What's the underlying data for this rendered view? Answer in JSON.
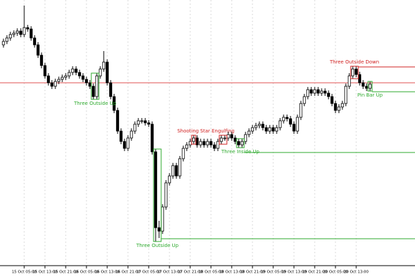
{
  "chart_data": {
    "type": "candlestick",
    "ylim": [
      15,
      400
    ],
    "xlim": [
      -1,
      119
    ],
    "bull_color": "#ffffff",
    "bear_color": "#000000",
    "wick_color": "#000000",
    "grid": true,
    "reference_line": {
      "value": 280,
      "color": "#e05050"
    },
    "xticks": [
      {
        "value": 6,
        "label": "15 Oct 05:00"
      },
      {
        "value": 12,
        "label": "15 Oct 13:00"
      },
      {
        "value": 18,
        "label": "15 Oct 21:00"
      },
      {
        "value": 24,
        "label": "16 Oct 05:00"
      },
      {
        "value": 30,
        "label": "16 Oct 13:00"
      },
      {
        "value": 36,
        "label": "16 Oct 21:00"
      },
      {
        "value": 42,
        "label": "17 Oct 05:00"
      },
      {
        "value": 48,
        "label": "17 Oct 13:00"
      },
      {
        "value": 54,
        "label": "17 Oct 21:00"
      },
      {
        "value": 60,
        "label": "18 Oct 05:00"
      },
      {
        "value": 66,
        "label": "18 Oct 13:00"
      },
      {
        "value": 72,
        "label": "18 Oct 21:00"
      },
      {
        "value": 78,
        "label": "19 Oct 05:00"
      },
      {
        "value": 84,
        "label": "19 Oct 13:00"
      },
      {
        "value": 90,
        "label": "19 Oct 21:00"
      },
      {
        "value": 96,
        "label": "20 Oct 05:00"
      },
      {
        "value": 102,
        "label": "20 Oct 13:00"
      }
    ],
    "ohlc": [
      [
        335,
        344,
        331,
        340
      ],
      [
        340,
        349,
        336,
        345
      ],
      [
        345,
        354,
        341,
        350
      ],
      [
        350,
        356,
        346,
        352
      ],
      [
        352,
        359,
        348,
        355
      ],
      [
        355,
        359,
        346,
        350
      ],
      [
        350,
        392,
        346,
        360
      ],
      [
        360,
        364,
        354,
        358
      ],
      [
        358,
        362,
        341,
        345
      ],
      [
        345,
        349,
        331,
        335
      ],
      [
        335,
        339,
        316,
        320
      ],
      [
        320,
        324,
        301,
        305
      ],
      [
        305,
        309,
        286,
        290
      ],
      [
        290,
        294,
        276,
        280
      ],
      [
        280,
        284,
        271,
        275
      ],
      [
        275,
        286,
        271,
        282
      ],
      [
        282,
        289,
        278,
        285
      ],
      [
        285,
        292,
        281,
        288
      ],
      [
        288,
        294,
        284,
        290
      ],
      [
        290,
        299,
        286,
        295
      ],
      [
        295,
        304,
        291,
        300
      ],
      [
        300,
        304,
        291,
        295
      ],
      [
        295,
        299,
        286,
        290
      ],
      [
        290,
        294,
        281,
        285
      ],
      [
        285,
        289,
        276,
        280
      ],
      [
        280,
        284,
        271,
        275
      ],
      [
        275,
        279,
        256,
        260
      ],
      [
        260,
        294,
        256,
        290
      ],
      [
        290,
        304,
        286,
        300
      ],
      [
        300,
        326,
        296,
        310
      ],
      [
        310,
        314,
        276,
        280
      ],
      [
        280,
        284,
        256,
        260
      ],
      [
        260,
        264,
        236,
        240
      ],
      [
        240,
        244,
        206,
        210
      ],
      [
        210,
        214,
        191,
        195
      ],
      [
        195,
        199,
        181,
        185
      ],
      [
        185,
        204,
        181,
        200
      ],
      [
        200,
        214,
        196,
        210
      ],
      [
        210,
        224,
        206,
        220
      ],
      [
        220,
        229,
        216,
        225
      ],
      [
        225,
        229,
        221,
        225
      ],
      [
        225,
        229,
        218,
        222
      ],
      [
        222,
        226,
        216,
        220
      ],
      [
        220,
        224,
        176,
        180
      ],
      [
        180,
        184,
        50,
        70
      ],
      [
        70,
        80,
        55,
        65
      ],
      [
        65,
        104,
        61,
        100
      ],
      [
        100,
        139,
        96,
        135
      ],
      [
        135,
        149,
        131,
        145
      ],
      [
        145,
        164,
        141,
        160
      ],
      [
        160,
        164,
        141,
        145
      ],
      [
        145,
        174,
        141,
        170
      ],
      [
        170,
        189,
        166,
        185
      ],
      [
        185,
        194,
        181,
        190
      ],
      [
        190,
        199,
        186,
        195
      ],
      [
        195,
        204,
        191,
        200
      ],
      [
        200,
        204,
        186,
        190
      ],
      [
        190,
        199,
        186,
        195
      ],
      [
        195,
        199,
        186,
        190
      ],
      [
        190,
        199,
        186,
        195
      ],
      [
        195,
        199,
        186,
        190
      ],
      [
        190,
        194,
        181,
        185
      ],
      [
        185,
        199,
        181,
        195
      ],
      [
        195,
        204,
        191,
        200
      ],
      [
        200,
        204,
        196,
        200
      ],
      [
        200,
        209,
        196,
        205
      ],
      [
        205,
        209,
        196,
        200
      ],
      [
        200,
        204,
        191,
        195
      ],
      [
        195,
        199,
        186,
        190
      ],
      [
        190,
        199,
        186,
        195
      ],
      [
        195,
        209,
        191,
        205
      ],
      [
        205,
        214,
        201,
        210
      ],
      [
        210,
        219,
        206,
        215
      ],
      [
        215,
        222,
        211,
        218
      ],
      [
        218,
        224,
        214,
        220
      ],
      [
        220,
        224,
        211,
        215
      ],
      [
        215,
        219,
        206,
        210
      ],
      [
        210,
        219,
        206,
        215
      ],
      [
        215,
        219,
        206,
        210
      ],
      [
        210,
        219,
        206,
        215
      ],
      [
        215,
        229,
        211,
        225
      ],
      [
        225,
        234,
        221,
        230
      ],
      [
        230,
        234,
        224,
        228
      ],
      [
        228,
        232,
        216,
        220
      ],
      [
        220,
        224,
        206,
        210
      ],
      [
        210,
        234,
        206,
        230
      ],
      [
        230,
        254,
        226,
        250
      ],
      [
        250,
        264,
        246,
        260
      ],
      [
        260,
        274,
        256,
        270
      ],
      [
        270,
        274,
        261,
        265
      ],
      [
        265,
        274,
        261,
        270
      ],
      [
        270,
        274,
        261,
        265
      ],
      [
        265,
        272,
        261,
        268
      ],
      [
        268,
        272,
        261,
        265
      ],
      [
        265,
        269,
        256,
        260
      ],
      [
        260,
        264,
        246,
        250
      ],
      [
        250,
        254,
        236,
        240
      ],
      [
        240,
        249,
        236,
        245
      ],
      [
        245,
        254,
        241,
        250
      ],
      [
        250,
        279,
        246,
        275
      ],
      [
        275,
        294,
        271,
        290
      ],
      [
        290,
        304,
        286,
        300
      ],
      [
        300,
        304,
        288,
        292
      ],
      [
        292,
        296,
        276,
        280
      ],
      [
        280,
        284,
        271,
        275
      ],
      [
        275,
        279,
        268,
        272
      ],
      [
        272,
        282,
        268,
        278
      ]
    ],
    "patterns": [
      {
        "label": "Three Outside Up",
        "color": "#2eaa2e",
        "start": 26,
        "end": 27,
        "position": "below"
      },
      {
        "label": "Three Outside Up",
        "color": "#2eaa2e",
        "start": 44,
        "end": 45,
        "position": "below",
        "level": 54
      },
      {
        "label": "Shooting Star",
        "color": "#d02020",
        "start": 55,
        "end": 55,
        "position": "above"
      },
      {
        "label": "Engulfing",
        "color": "#d02020",
        "start": 63,
        "end": 64,
        "position": "above"
      },
      {
        "label": "Three Inside Up",
        "color": "#2eaa2e",
        "start": 68,
        "end": 69,
        "position": "below",
        "level": 179
      },
      {
        "label": "Three Outside Down",
        "color": "#d02020",
        "start": 101,
        "end": 102,
        "position": "above",
        "level": 303
      },
      {
        "label": "Pin Bar Up",
        "color": "#2eaa2e",
        "start": 106,
        "end": 106,
        "position": "below",
        "level": 267
      }
    ]
  }
}
